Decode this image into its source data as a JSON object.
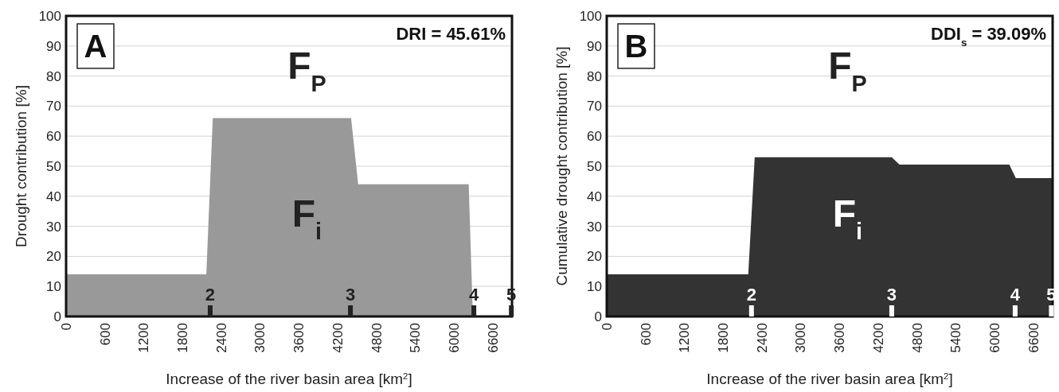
{
  "chart_data": [
    {
      "type": "area",
      "xlabel": "Increase of the river basin area [km$^{2}$]",
      "ylabel": "Drought contribution [%]",
      "xlim": [
        0,
        6900
      ],
      "xticks": [
        0,
        600,
        1200,
        1800,
        2400,
        3000,
        3600,
        4200,
        4800,
        5400,
        6000,
        6600
      ],
      "ylim": [
        0,
        100
      ],
      "yticks": [
        0,
        10,
        20,
        30,
        40,
        50,
        60,
        70,
        80,
        90,
        100
      ],
      "grid": "y",
      "series": [
        {
          "color": "#999999",
          "x": [
            0,
            2170,
            2270,
            4410,
            4520,
            6230,
            6295,
            6900
          ],
          "values": [
            14,
            14,
            66,
            66,
            44,
            44,
            0,
            0
          ]
        }
      ],
      "annotations": [
        "A",
        "DRI = 45.61%",
        "F$_{P}$",
        "F$_{i}$",
        {
          "text": "2",
          "x": 2230,
          "y": 0
        },
        {
          "text": "3",
          "x": 4400,
          "y": 0
        },
        {
          "text": "4",
          "x": 6310,
          "y": 0
        },
        {
          "text": "5",
          "x": 6890,
          "y": 0
        }
      ]
    },
    {
      "type": "area",
      "xlabel": "Increase of the river basin area [km$^{2}$]",
      "ylabel": "Cumulative drought contribution [%]",
      "xlim": [
        0,
        6900
      ],
      "xticks": [
        0,
        600,
        1200,
        1800,
        2400,
        3000,
        3600,
        4200,
        4800,
        5400,
        6000,
        6600
      ],
      "ylim": [
        0,
        100
      ],
      "yticks": [
        0,
        10,
        20,
        30,
        40,
        50,
        60,
        70,
        80,
        90,
        100
      ],
      "grid": "y",
      "series": [
        {
          "color": "#333333",
          "x": [
            0,
            2190,
            2290,
            4410,
            4530,
            6230,
            6330,
            6900
          ],
          "values": [
            14,
            14,
            53,
            53,
            50.5,
            50.5,
            46,
            46
          ]
        }
      ],
      "annotations": [
        "B",
        "DDI$_{s}$ = 39.09%",
        "F$_{P}$",
        "F$_{i}$",
        {
          "text": "2",
          "x": 2240,
          "y": 0
        },
        {
          "text": "3",
          "x": 4410,
          "y": 0
        },
        {
          "text": "4",
          "x": 6320,
          "y": 0
        },
        {
          "text": "5",
          "x": 6880,
          "y": 0
        }
      ]
    }
  ]
}
